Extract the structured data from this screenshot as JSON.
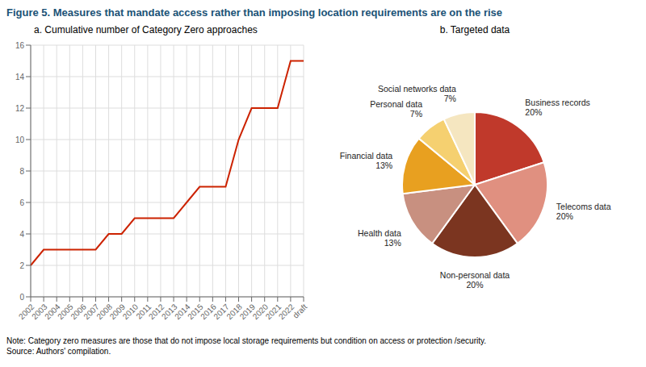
{
  "title": "Figure 5. Measures that mandate access rather than imposing location requirements are on the rise",
  "annotations": [
    "Note: Category zero measures are those that do not impose local storage requirements but condition on access or protection /security.",
    "Source: Authors' compilation."
  ],
  "chart_data": [
    {
      "type": "line",
      "title": "a. Cumulative number of Category Zero approaches",
      "categories": [
        "2002",
        "2003",
        "2004",
        "2005",
        "2006",
        "2007",
        "2008",
        "2009",
        "2010",
        "2011",
        "2012",
        "2013",
        "2014",
        "2015",
        "2016",
        "2017",
        "2018",
        "2019",
        "2020",
        "2021",
        "2022",
        "draft"
      ],
      "values": [
        2,
        3,
        3,
        3,
        3,
        3,
        4,
        4,
        5,
        5,
        5,
        5,
        6,
        7,
        7,
        7,
        10,
        12,
        12,
        12,
        15,
        15
      ],
      "color": "#cc2200",
      "ylim": [
        0,
        16
      ],
      "yticks": [
        0,
        2,
        4,
        6,
        8,
        10,
        12,
        14,
        16
      ],
      "grid": true
    },
    {
      "type": "pie",
      "title": "b. Targeted data",
      "categories": [
        "Business records",
        "Telecoms data",
        "Non-personal data",
        "Health data",
        "Financial data",
        "Personal data",
        "Social networks data"
      ],
      "values": [
        20,
        20,
        20,
        13,
        13,
        7,
        7
      ],
      "value_labels": [
        "20%",
        "20%",
        "20%",
        "13%",
        "13%",
        "7%",
        "7%"
      ],
      "colors": [
        "#c0392b",
        "#e09080",
        "#7b3520",
        "#c89080",
        "#e8a020",
        "#f5d070",
        "#f5e6c0"
      ],
      "data_labels": true
    }
  ]
}
